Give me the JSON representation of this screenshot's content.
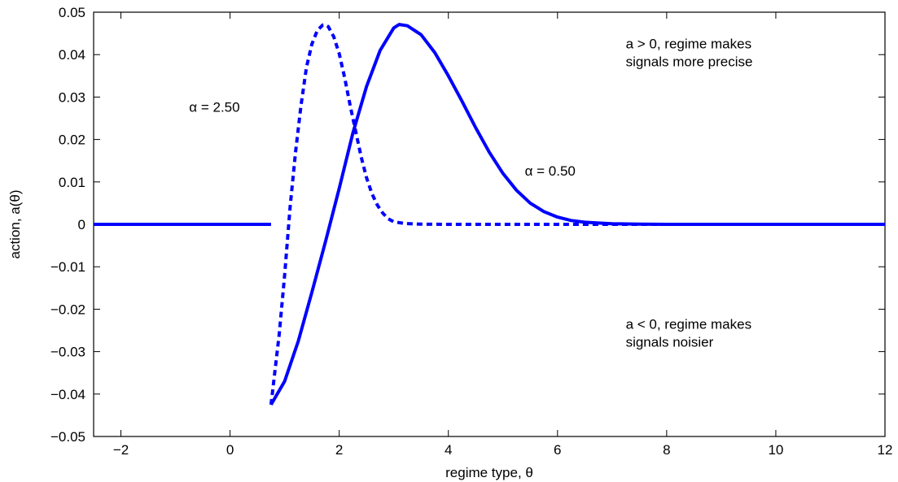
{
  "chart_data": {
    "type": "line",
    "title": "",
    "xlabel": "regime type, θ",
    "ylabel": "action, a(θ)",
    "xlim": [
      -2.5,
      12
    ],
    "ylim": [
      -0.05,
      0.05
    ],
    "x_ticks": [
      -2,
      0,
      2,
      4,
      6,
      8,
      10,
      12
    ],
    "x_tick_labels": [
      "−2",
      "0",
      "2",
      "4",
      "6",
      "8",
      "10",
      "12"
    ],
    "y_ticks": [
      -0.05,
      -0.04,
      -0.03,
      -0.02,
      -0.01,
      0,
      0.01,
      0.02,
      0.03,
      0.04,
      0.05
    ],
    "y_tick_labels": [
      "−0.05",
      "−0.04",
      "−0.03",
      "−0.02",
      "−0.01",
      "0",
      "0.01",
      "0.02",
      "0.03",
      "0.04",
      "0.05"
    ],
    "grid": false,
    "legend": "none",
    "series": [
      {
        "name": "α = 0.50",
        "style": "solid",
        "color": "#0000ff",
        "segments": [
          {
            "x": [
              -2.5,
              0.75
            ],
            "y": [
              0,
              0
            ]
          },
          {
            "x": [
              0.75,
              1.0,
              1.25,
              1.5,
              1.75,
              2.0,
              2.25,
              2.5,
              2.75,
              3.0,
              3.1,
              3.25,
              3.5,
              3.75,
              4.0,
              4.25,
              4.5,
              4.75,
              5.0,
              5.25,
              5.5,
              5.75,
              6.0,
              6.25,
              6.5,
              6.75,
              7.0,
              7.25,
              7.5,
              7.75,
              8.0,
              8.5,
              9.0,
              10.0,
              11.0,
              12.0
            ],
            "y": [
              -0.0425,
              -0.037,
              -0.0275,
              -0.016,
              -0.004,
              0.0085,
              0.0215,
              0.0325,
              0.041,
              0.0463,
              0.0471,
              0.0468,
              0.0447,
              0.0405,
              0.035,
              0.029,
              0.0228,
              0.017,
              0.012,
              0.008,
              0.005,
              0.003,
              0.0017,
              0.0009,
              0.0005,
              0.0003,
              0.00015,
              0.0001,
              5e-05,
              2e-05,
              0,
              0,
              0,
              0,
              0,
              0
            ]
          }
        ]
      },
      {
        "name": "α = 2.50",
        "style": "dashed",
        "color": "#0000ff",
        "segments": [
          {
            "x": [
              0.75,
              0.9,
              1.0,
              1.1,
              1.2,
              1.3,
              1.4,
              1.5,
              1.6,
              1.7,
              1.75,
              1.8,
              1.9,
              2.0,
              2.1,
              2.2,
              2.3,
              2.4,
              2.5,
              2.6,
              2.7,
              2.8,
              2.9,
              3.0,
              3.2,
              3.5,
              4.0,
              5.0,
              6.0,
              8.0,
              10.0,
              12.0
            ],
            "y": [
              -0.0425,
              -0.026,
              -0.012,
              0.004,
              0.017,
              0.028,
              0.037,
              0.0425,
              0.0457,
              0.047,
              0.047,
              0.0466,
              0.0442,
              0.0402,
              0.0345,
              0.028,
              0.022,
              0.016,
              0.011,
              0.0072,
              0.0045,
              0.0026,
              0.0013,
              0.0006,
              0.0002,
              4e-05,
              0,
              0,
              0,
              0,
              0,
              0
            ]
          }
        ]
      }
    ],
    "annotations": [
      {
        "lines": [
          "α = 2.50"
        ],
        "x": -0.75,
        "y": 0.0265
      },
      {
        "lines": [
          "α = 0.50"
        ],
        "x": 5.4,
        "y": 0.0115
      },
      {
        "lines": [
          "a > 0, regime makes",
          "signals more precise"
        ],
        "x": 7.25,
        "y": 0.0415
      },
      {
        "lines": [
          "a < 0, regime makes",
          "signals noisier"
        ],
        "x": 7.25,
        "y": -0.0246
      }
    ]
  }
}
